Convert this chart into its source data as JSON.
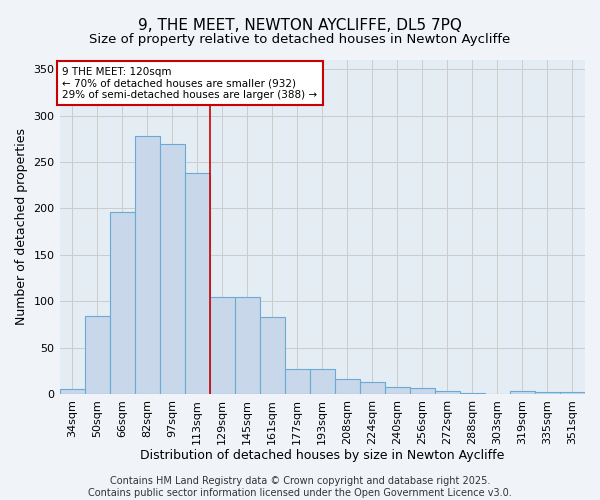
{
  "title": "9, THE MEET, NEWTON AYCLIFFE, DL5 7PQ",
  "subtitle": "Size of property relative to detached houses in Newton Aycliffe",
  "xlabel": "Distribution of detached houses by size in Newton Aycliffe",
  "ylabel": "Number of detached properties",
  "categories": [
    "34sqm",
    "50sqm",
    "66sqm",
    "82sqm",
    "97sqm",
    "113sqm",
    "129sqm",
    "145sqm",
    "161sqm",
    "177sqm",
    "193sqm",
    "208sqm",
    "224sqm",
    "240sqm",
    "256sqm",
    "272sqm",
    "288sqm",
    "303sqm",
    "319sqm",
    "335sqm",
    "351sqm"
  ],
  "values": [
    5,
    84,
    196,
    278,
    269,
    238,
    104,
    104,
    83,
    27,
    27,
    16,
    13,
    8,
    6,
    3,
    1,
    0,
    3,
    2,
    2
  ],
  "bar_color": "#c8d8ea",
  "bar_edge_color": "#6aaad4",
  "highlight_index": 5,
  "highlight_line_color": "#cc0000",
  "annotation_text": "9 THE MEET: 120sqm\n← 70% of detached houses are smaller (932)\n29% of semi-detached houses are larger (388) →",
  "annotation_box_color": "#ffffff",
  "annotation_box_edge": "#cc0000",
  "ylim": [
    0,
    360
  ],
  "yticks": [
    0,
    50,
    100,
    150,
    200,
    250,
    300,
    350
  ],
  "grid_color": "#cccccc",
  "bg_color": "#f0f4f8",
  "plot_bg_color": "#e4ecf4",
  "footer": "Contains HM Land Registry data © Crown copyright and database right 2025.\nContains public sector information licensed under the Open Government Licence v3.0.",
  "title_fontsize": 11,
  "subtitle_fontsize": 9.5,
  "label_fontsize": 9,
  "tick_fontsize": 8,
  "footer_fontsize": 7
}
